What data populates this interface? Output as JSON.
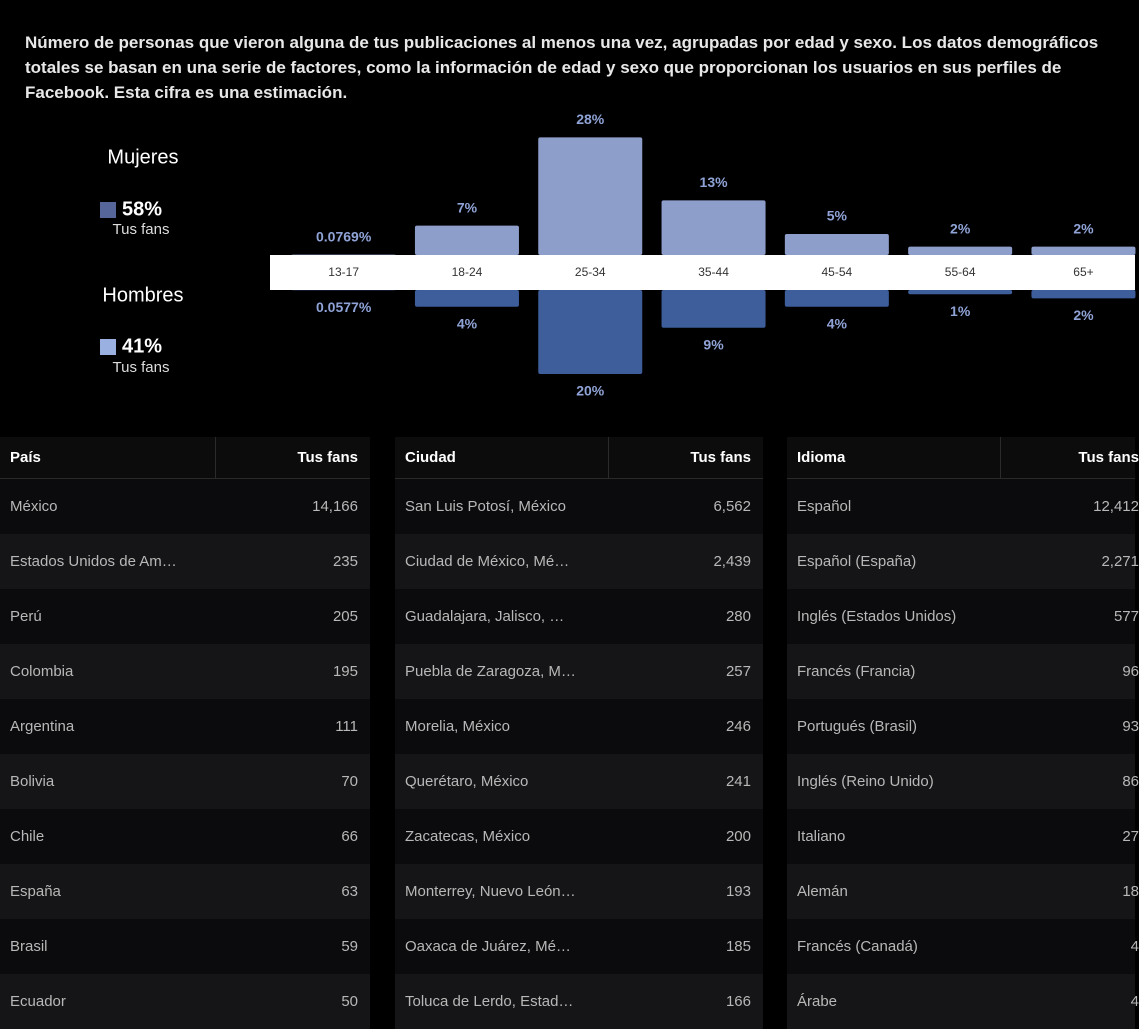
{
  "description": "Número de personas que vieron alguna de tus publicaciones al menos una vez, agrupadas por edad y sexo. Los datos demográficos totales se basan en una serie de factores, como la información de edad y sexo que proporcionan los usuarios en sus perfiles de Facebook. Esta cifra es una estimación.",
  "chart_data": {
    "type": "bar",
    "categories": [
      "13-17",
      "18-24",
      "25-34",
      "35-44",
      "45-54",
      "55-64",
      "65+"
    ],
    "series": [
      {
        "name": "Mujeres",
        "color": "#8e9ecb",
        "legend_color": "#56669a",
        "total": "58%",
        "caption": "Tus fans",
        "values": [
          0.0769,
          7,
          28,
          13,
          5,
          2,
          2
        ],
        "value_labels": [
          "0.0769%",
          "7%",
          "28%",
          "13%",
          "5%",
          "2%",
          "2%"
        ]
      },
      {
        "name": "Hombres",
        "color": "#3e5d9b",
        "legend_color": "#9ab0e0",
        "total": "41%",
        "caption": "Tus fans",
        "values": [
          0.0577,
          4,
          20,
          9,
          4,
          1,
          2
        ],
        "value_labels": [
          "0.0577%",
          "4%",
          "20%",
          "9%",
          "4%",
          "1%",
          "2%"
        ]
      }
    ]
  },
  "tables": [
    {
      "headers": [
        "País",
        "Tus fans"
      ],
      "rows": [
        [
          "México",
          "14,166"
        ],
        [
          "Estados Unidos de Am…",
          "235"
        ],
        [
          "Perú",
          "205"
        ],
        [
          "Colombia",
          "195"
        ],
        [
          "Argentina",
          "111"
        ],
        [
          "Bolivia",
          "70"
        ],
        [
          "Chile",
          "66"
        ],
        [
          "España",
          "63"
        ],
        [
          "Brasil",
          "59"
        ],
        [
          "Ecuador",
          "50"
        ]
      ]
    },
    {
      "headers": [
        "Ciudad",
        "Tus fans"
      ],
      "rows": [
        [
          "San Luis Potosí, México",
          "6,562"
        ],
        [
          "Ciudad de México, Mé…",
          "2,439"
        ],
        [
          "Guadalajara, Jalisco, …",
          "280"
        ],
        [
          "Puebla de Zaragoza, M…",
          "257"
        ],
        [
          "Morelia, México",
          "246"
        ],
        [
          "Querétaro, México",
          "241"
        ],
        [
          "Zacatecas, México",
          "200"
        ],
        [
          "Monterrey, Nuevo León…",
          "193"
        ],
        [
          "Oaxaca de Juárez, Mé…",
          "185"
        ],
        [
          "Toluca de Lerdo, Estad…",
          "166"
        ]
      ]
    },
    {
      "headers": [
        "Idioma",
        "Tus fans"
      ],
      "rows": [
        [
          "Español",
          "12,412"
        ],
        [
          "Español (España)",
          "2,271"
        ],
        [
          "Inglés (Estados Unidos)",
          "577"
        ],
        [
          "Francés (Francia)",
          "96"
        ],
        [
          "Portugués (Brasil)",
          "93"
        ],
        [
          "Inglés (Reino Unido)",
          "86"
        ],
        [
          "Italiano",
          "27"
        ],
        [
          "Alemán",
          "18"
        ],
        [
          "Francés (Canadá)",
          "4"
        ],
        [
          "Árabe",
          "4"
        ]
      ]
    }
  ]
}
